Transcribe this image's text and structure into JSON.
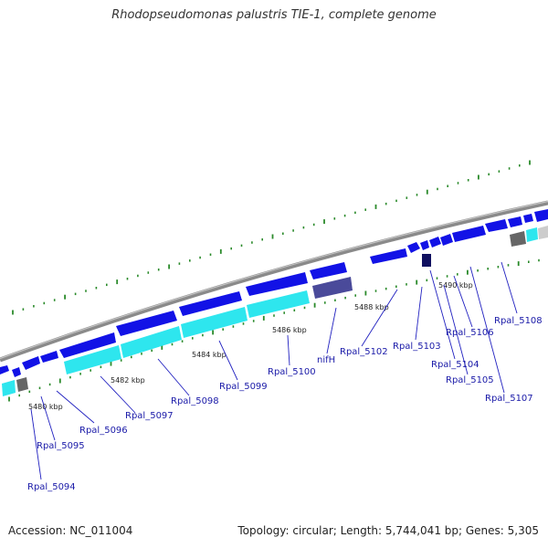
{
  "title": "Rhodopseudomonas palustris TIE-1, complete genome",
  "footer": {
    "accession": "Accession: NC_011004",
    "summary": "Topology: circular; Length: 5,744,041 bp; Genes: 5,305"
  },
  "colors": {
    "gene_forward": "#1212e6",
    "gene_cds": "#2ee6ee",
    "gene_nif": "#4a4a9a",
    "gene_dark": "#101060",
    "backbone": "#8a8a8a",
    "tick": "#2a8a2a",
    "label": "#1a1aa8",
    "pointer": "#2020c0"
  },
  "kbp_labels": [
    "5480 kbp",
    "5482 kbp",
    "5484 kbp",
    "5486 kbp",
    "5488 kbp",
    "5490 kbp"
  ],
  "gene_labels": [
    "Rpal_5094",
    "Rpal_5095",
    "Rpal_5096",
    "Rpal_5097",
    "Rpal_5098",
    "Rpal_5099",
    "Rpal_5100",
    "nifH",
    "Rpal_5102",
    "Rpal_5103",
    "Rpal_5104",
    "Rpal_5105",
    "Rpal_5106",
    "Rpal_5107",
    "Rpal_5108"
  ]
}
